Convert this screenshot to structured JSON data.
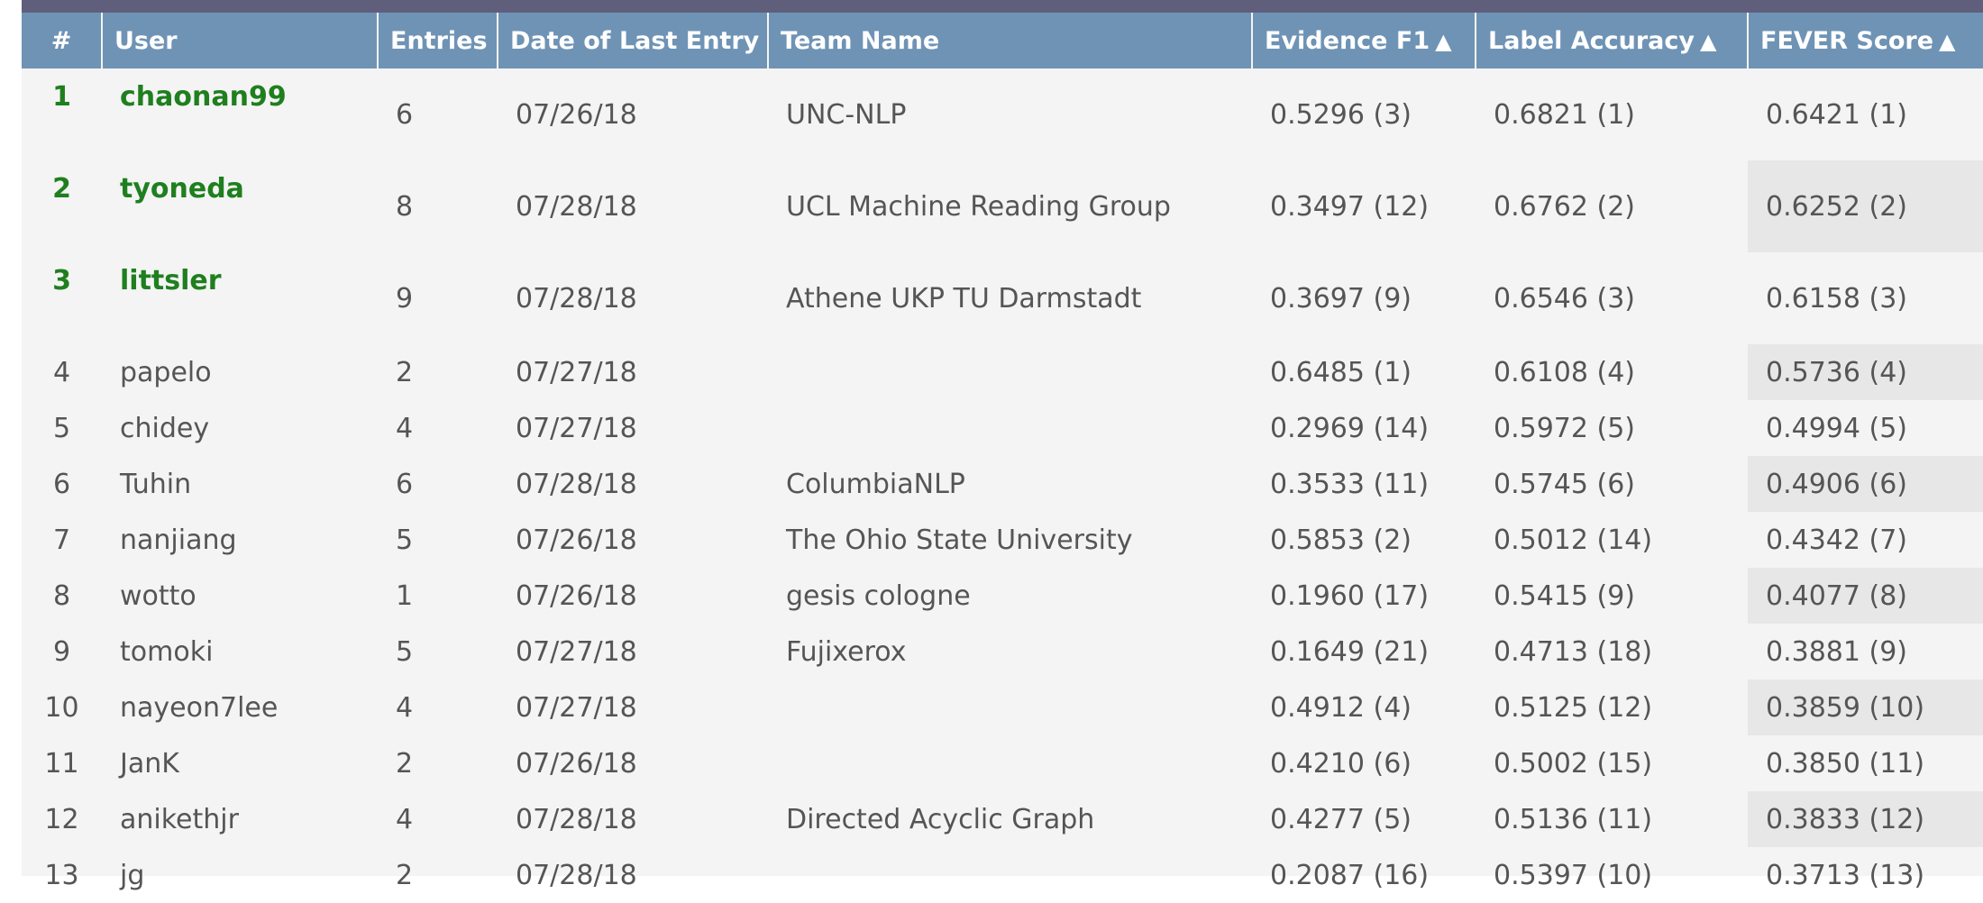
{
  "table": {
    "headers": {
      "rank": "#",
      "user": "User",
      "entries": "Entries",
      "date": "Date of Last Entry",
      "team": "Team Name",
      "evidence_f1": "Evidence F1",
      "label_accuracy": "Label Accuracy",
      "fever_score": "FEVER Score"
    },
    "sort_icon": "▲",
    "rows": [
      {
        "rank": "1",
        "user": "chaonan99",
        "entries": "6",
        "date": "07/26/18",
        "team": "UNC-NLP",
        "evidence_f1": "0.5296 (3)",
        "label_accuracy": "0.6821 (1)",
        "fever_score": "0.6421 (1)"
      },
      {
        "rank": "2",
        "user": "tyoneda",
        "entries": "8",
        "date": "07/28/18",
        "team": "UCL Machine Reading Group",
        "evidence_f1": "0.3497 (12)",
        "label_accuracy": "0.6762 (2)",
        "fever_score": "0.6252 (2)"
      },
      {
        "rank": "3",
        "user": "littsler",
        "entries": "9",
        "date": "07/28/18",
        "team": "Athene UKP TU Darmstadt",
        "evidence_f1": "0.3697 (9)",
        "label_accuracy": "0.6546 (3)",
        "fever_score": "0.6158 (3)"
      },
      {
        "rank": "4",
        "user": "papelo",
        "entries": "2",
        "date": "07/27/18",
        "team": "",
        "evidence_f1": "0.6485 (1)",
        "label_accuracy": "0.6108 (4)",
        "fever_score": "0.5736 (4)"
      },
      {
        "rank": "5",
        "user": "chidey",
        "entries": "4",
        "date": "07/27/18",
        "team": "",
        "evidence_f1": "0.2969 (14)",
        "label_accuracy": "0.5972 (5)",
        "fever_score": "0.4994 (5)"
      },
      {
        "rank": "6",
        "user": "Tuhin",
        "entries": "6",
        "date": "07/28/18",
        "team": "ColumbiaNLP",
        "evidence_f1": "0.3533 (11)",
        "label_accuracy": "0.5745 (6)",
        "fever_score": "0.4906 (6)"
      },
      {
        "rank": "7",
        "user": "nanjiang",
        "entries": "5",
        "date": "07/26/18",
        "team": "The Ohio State University",
        "evidence_f1": "0.5853 (2)",
        "label_accuracy": "0.5012 (14)",
        "fever_score": "0.4342 (7)"
      },
      {
        "rank": "8",
        "user": "wotto",
        "entries": "1",
        "date": "07/26/18",
        "team": "gesis cologne",
        "evidence_f1": "0.1960 (17)",
        "label_accuracy": "0.5415 (9)",
        "fever_score": "0.4077 (8)"
      },
      {
        "rank": "9",
        "user": "tomoki",
        "entries": "5",
        "date": "07/27/18",
        "team": "Fujixerox",
        "evidence_f1": "0.1649 (21)",
        "label_accuracy": "0.4713 (18)",
        "fever_score": "0.3881 (9)"
      },
      {
        "rank": "10",
        "user": "nayeon7lee",
        "entries": "4",
        "date": "07/27/18",
        "team": "",
        "evidence_f1": "0.4912 (4)",
        "label_accuracy": "0.5125 (12)",
        "fever_score": "0.3859 (10)"
      },
      {
        "rank": "11",
        "user": "JanK",
        "entries": "2",
        "date": "07/26/18",
        "team": "",
        "evidence_f1": "0.4210 (6)",
        "label_accuracy": "0.5002 (15)",
        "fever_score": "0.3850 (11)"
      },
      {
        "rank": "12",
        "user": "anikethjr",
        "entries": "4",
        "date": "07/28/18",
        "team": "Directed Acyclic Graph",
        "evidence_f1": "0.4277 (5)",
        "label_accuracy": "0.5136 (11)",
        "fever_score": "0.3833 (12)"
      },
      {
        "rank": "13",
        "user": "jg",
        "entries": "2",
        "date": "07/28/18",
        "team": "",
        "evidence_f1": "0.2087 (16)",
        "label_accuracy": "0.5397 (10)",
        "fever_score": "0.3713 (13)"
      }
    ]
  }
}
